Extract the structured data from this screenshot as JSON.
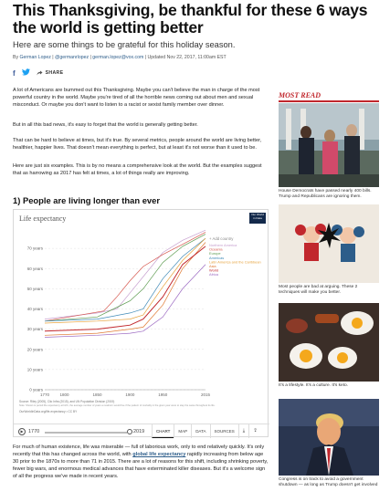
{
  "article": {
    "headline": "This Thanksgiving, be thankful for these 6 ways the world is getting better",
    "dek": "Here are some things to be grateful for this holiday season.",
    "byline": {
      "by": "By",
      "author": "German Lopez",
      "handle": "@germanrlopez",
      "email": "german.lopez@vox.com",
      "updated": "Updated Nov 22, 2017, 11:00am EST"
    },
    "share": {
      "facebook_icon": "facebook-icon",
      "twitter_icon": "twitter-icon",
      "share_label": "SHARE"
    },
    "paragraphs": [
      "A lot of Americans are bummed out this Thanksgiving. Maybe you can't believe the man in charge of the most powerful country in the world. Maybe you're tired of all the horrible news coming out about men and sexual misconduct. Or maybe you don't want to listen to a racist or sexist family member over dinner.",
      "But in all this bad news, it's easy to forget that the world is generally getting better.",
      "That can be hard to believe at times, but it's true. By several metrics, people around the world are living better, healthier, happier lives. That doesn't mean everything is perfect, but at least it's not worse than it used to be.",
      "Here are just six examples. This is by no means a comprehensive look at the world. But the examples suggest that as harrowing as 2017 has felt at times, a lot of things really are improving."
    ],
    "section_heading": "1) People are living longer than ever",
    "p5_a": "For much of human existence, life was miserable — full of laborious work, only to end relatively quickly. It's only recently that this has changed across the world, with ",
    "p5_link": "global life expectancy",
    "p5_b": " rapidly increasing from below age 30 prior to the 1870s to more than 71 in 2015. There are a lot of reasons for this shift, including shrinking poverty, fewer big wars, and enormous medical advances that have exterminated killer diseases. But it's a welcome sign of all the progress we've made in recent years."
  },
  "chart": {
    "badge_line1": "Our World",
    "badge_line2": "in Data",
    "add_country": "+ Add country",
    "source_line1": "Source: Riley (2005), Clio Infra (2015), and UN Population Division (2019)",
    "source_line2": "Note: Shown is period life expectancy at birth, the average number of years a newborn would live if the pattern of mortality in the given year were to stay the same throughout its life.",
    "source_line3": "OurWorldInData.org/life-expectancy • CC BY",
    "controls": {
      "play_icon": "play-icon",
      "start_year": "1770",
      "end_year": "2019",
      "tabs": [
        "CHART",
        "MAP",
        "DATA",
        "SOURCES"
      ],
      "active_tab": "CHART",
      "download_icon": "download-icon",
      "share_icon": "share-icon"
    }
  },
  "chart_data": {
    "type": "line",
    "title": "Life expectancy",
    "xlabel": "",
    "ylabel": "",
    "x_ticks": [
      "1770",
      "1800",
      "1850",
      "1900",
      "1950",
      "2015"
    ],
    "y_ticks": [
      "0 years",
      "10 years",
      "20 years",
      "30 years",
      "40 years",
      "50 years",
      "60 years",
      "70 years"
    ],
    "xlim": [
      1770,
      2015
    ],
    "ylim": [
      0,
      80
    ],
    "grid": true,
    "legend_position": "right",
    "series": [
      {
        "name": "Northern America",
        "color": "#c7a0cf",
        "points": [
          [
            1770,
            35
          ],
          [
            1850,
            38
          ],
          [
            1880,
            40
          ],
          [
            1900,
            48
          ],
          [
            1920,
            56
          ],
          [
            1950,
            68
          ],
          [
            1980,
            74
          ],
          [
            2015,
            79
          ]
        ]
      },
      {
        "name": "Oceania",
        "color": "#d6574e",
        "points": [
          [
            1770,
            34
          ],
          [
            1860,
            39
          ],
          [
            1880,
            46
          ],
          [
            1900,
            54
          ],
          [
            1920,
            61
          ],
          [
            1950,
            67
          ],
          [
            1980,
            72
          ],
          [
            2015,
            78
          ]
        ]
      },
      {
        "name": "Europe",
        "color": "#5b9a4e",
        "points": [
          [
            1770,
            34
          ],
          [
            1850,
            36
          ],
          [
            1900,
            44
          ],
          [
            1920,
            50
          ],
          [
            1950,
            63
          ],
          [
            1980,
            71
          ],
          [
            2015,
            77
          ]
        ]
      },
      {
        "name": "Americas",
        "color": "#3f8ab7",
        "points": [
          [
            1770,
            34
          ],
          [
            1850,
            35
          ],
          [
            1900,
            38
          ],
          [
            1920,
            40
          ],
          [
            1950,
            55
          ],
          [
            1980,
            66
          ],
          [
            2015,
            75
          ]
        ]
      },
      {
        "name": "Latin America and the Caribbean",
        "color": "#e6a23c",
        "points": [
          [
            1770,
            33
          ],
          [
            1850,
            34
          ],
          [
            1900,
            35
          ],
          [
            1920,
            37
          ],
          [
            1950,
            51
          ],
          [
            1980,
            64
          ],
          [
            2015,
            75
          ]
        ]
      },
      {
        "name": "Asia",
        "color": "#e07a32",
        "points": [
          [
            1770,
            27
          ],
          [
            1850,
            28
          ],
          [
            1900,
            30
          ],
          [
            1920,
            31
          ],
          [
            1950,
            42
          ],
          [
            1980,
            60
          ],
          [
            2015,
            73
          ]
        ]
      },
      {
        "name": "World",
        "color": "#c1272d",
        "points": [
          [
            1770,
            29
          ],
          [
            1850,
            30
          ],
          [
            1900,
            32
          ],
          [
            1920,
            35
          ],
          [
            1950,
            46
          ],
          [
            1980,
            62
          ],
          [
            2015,
            71
          ]
        ]
      },
      {
        "name": "Africa",
        "color": "#9c6ac2",
        "points": [
          [
            1770,
            26
          ],
          [
            1850,
            27
          ],
          [
            1900,
            28
          ],
          [
            1920,
            29
          ],
          [
            1950,
            36
          ],
          [
            1980,
            50
          ],
          [
            2015,
            62
          ]
        ]
      }
    ]
  },
  "sidebar": {
    "heading": "MOST READ",
    "items": [
      {
        "caption": "House Democrats have passed nearly 400 bills. Trump and Republicans are ignoring them."
      },
      {
        "caption": "Most people are bad at arguing. These 2 techniques will make you better."
      },
      {
        "caption": "It's a lifestyle. It's a culture. It's keto."
      },
      {
        "caption": "Congress is on track to avoid a government shutdown — as long as Trump doesn't get involved"
      }
    ]
  }
}
